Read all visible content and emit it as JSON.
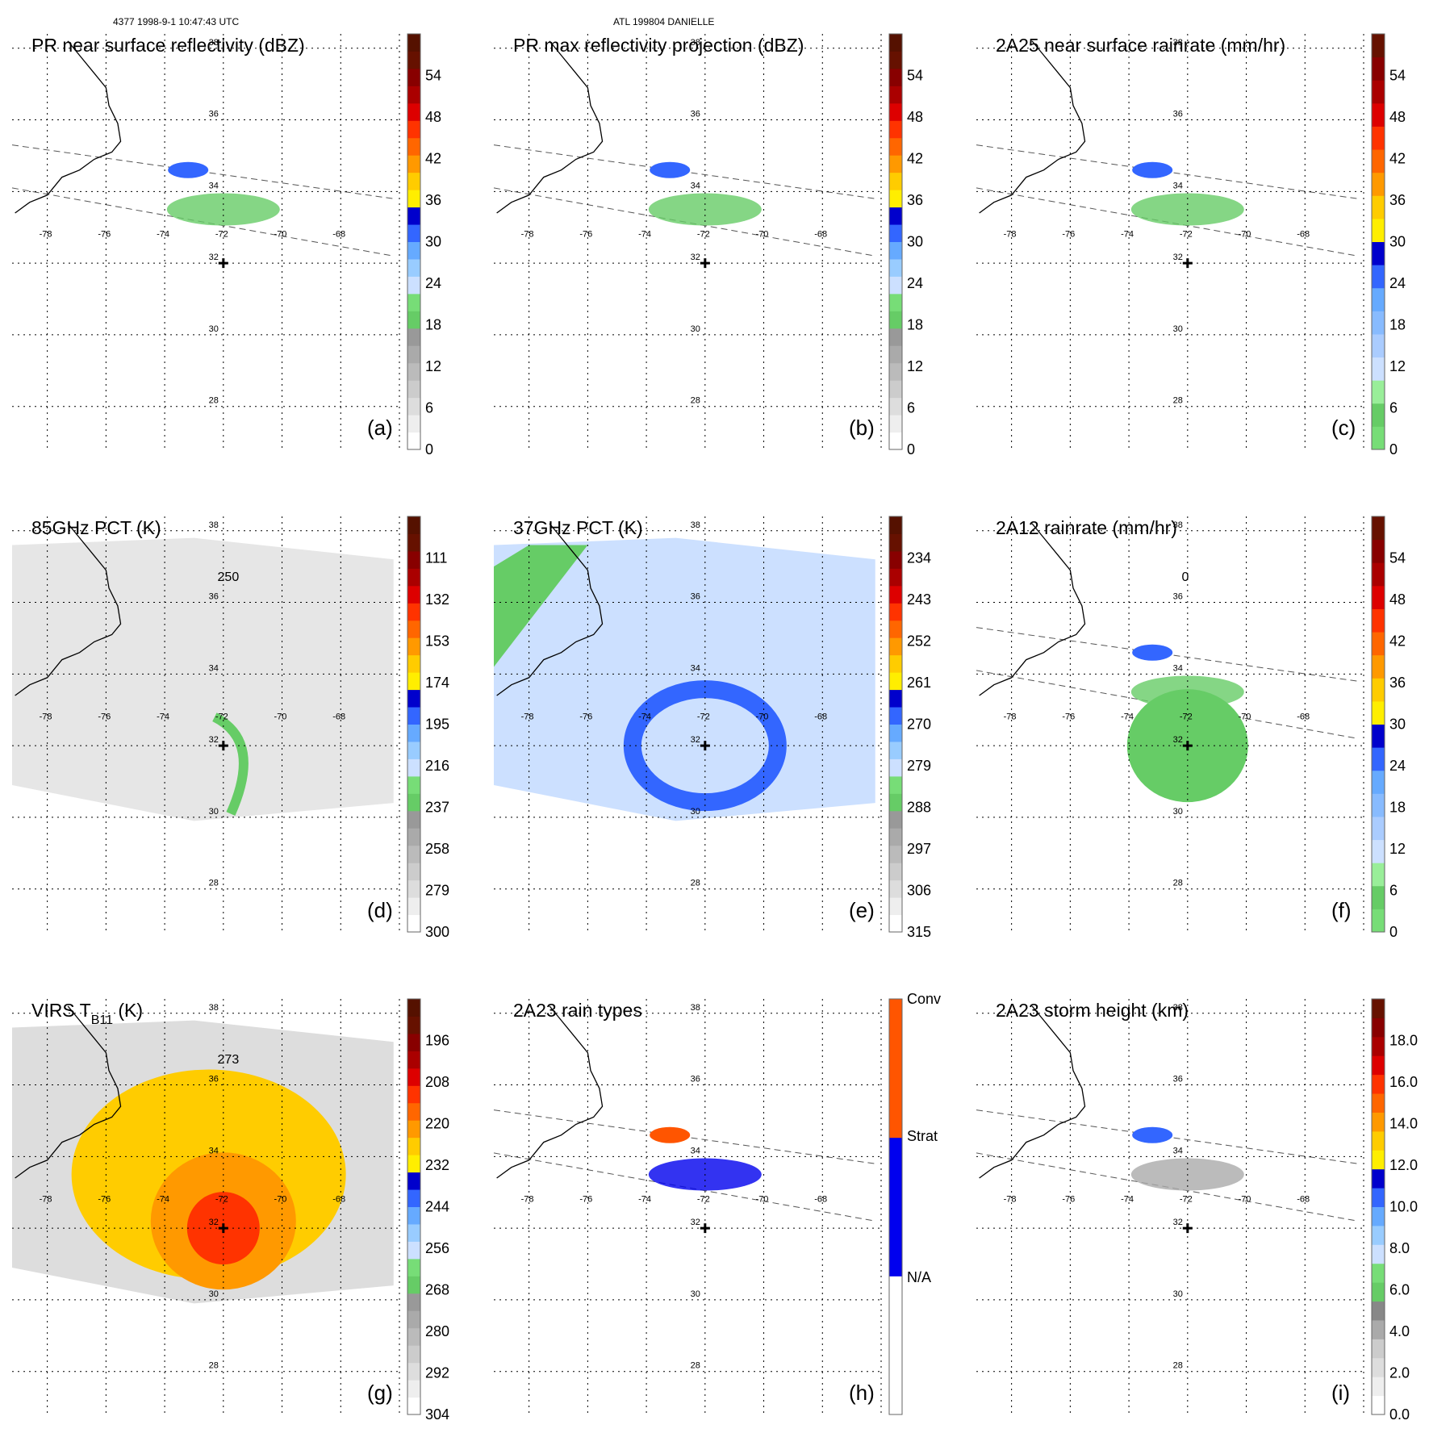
{
  "header": {
    "orbit_info": "4377 1998-9-1 10:47:43 UTC",
    "storm_info": "ATL 199804 DANIELLE"
  },
  "map": {
    "lat_labels": [
      "38",
      "36",
      "34",
      "32",
      "30",
      "28"
    ],
    "lon_labels": [
      "-78",
      "-76",
      "-74",
      "-72",
      "-70",
      "-68"
    ],
    "storm_center": {
      "lon": -72,
      "lat": 32
    }
  },
  "panels": [
    {
      "letter": "(a)",
      "title": "PR near surface reflectivity (dBZ)",
      "colorbar": {
        "labels": [
          "0",
          "6",
          "12",
          "18",
          "24",
          "30",
          "36",
          "42",
          "48",
          "54"
        ],
        "colors": [
          "#ffffff",
          "#eeeeee",
          "#dddddd",
          "#cccccc",
          "#bbbbbb",
          "#aaaaaa",
          "#999999",
          "#66cc66",
          "#77dd77",
          "#cce0ff",
          "#99ccff",
          "#66aaff",
          "#3366ff",
          "#0000cc",
          "#ffee00",
          "#ffcc00",
          "#ff9900",
          "#ff6600",
          "#ff3300",
          "#dd0000",
          "#aa0000",
          "#880000",
          "#661100",
          "#551100"
        ]
      },
      "coverage": "swath"
    },
    {
      "letter": "(b)",
      "title": "PR max reflectivity projection (dBZ)",
      "colorbar": {
        "labels": [
          "0",
          "6",
          "12",
          "18",
          "24",
          "30",
          "36",
          "42",
          "48",
          "54"
        ],
        "colors": [
          "#ffffff",
          "#eeeeee",
          "#dddddd",
          "#cccccc",
          "#bbbbbb",
          "#aaaaaa",
          "#999999",
          "#66cc66",
          "#77dd77",
          "#cce0ff",
          "#99ccff",
          "#66aaff",
          "#3366ff",
          "#0000cc",
          "#ffee00",
          "#ffcc00",
          "#ff9900",
          "#ff6600",
          "#ff3300",
          "#dd0000",
          "#aa0000",
          "#880000",
          "#661100",
          "#551100"
        ]
      },
      "coverage": "swath"
    },
    {
      "letter": "(c)",
      "title": "2A25 near surface rainrate (mm/hr)",
      "colorbar": {
        "labels": [
          "0",
          "6",
          "12",
          "18",
          "24",
          "30",
          "36",
          "42",
          "48",
          "54"
        ],
        "colors": [
          "#77dd77",
          "#66cc66",
          "#99ee99",
          "#cce0ff",
          "#aaccff",
          "#88bbff",
          "#66aaff",
          "#3366ff",
          "#0000cc",
          "#ffee00",
          "#ffcc00",
          "#ff9900",
          "#ff6600",
          "#ff3300",
          "#dd0000",
          "#aa0000",
          "#880000",
          "#661100"
        ]
      },
      "coverage": "swath"
    },
    {
      "letter": "(d)",
      "title": "85GHz PCT (K)",
      "colorbar": {
        "labels": [
          "300",
          "279",
          "258",
          "237",
          "216",
          "195",
          "174",
          "153",
          "132",
          "111"
        ],
        "colors": [
          "#ffffff",
          "#eeeeee",
          "#dddddd",
          "#cccccc",
          "#bbbbbb",
          "#aaaaaa",
          "#999999",
          "#66cc66",
          "#77dd77",
          "#cce0ff",
          "#99ccff",
          "#66aaff",
          "#3366ff",
          "#0000cc",
          "#ffee00",
          "#ffcc00",
          "#ff9900",
          "#ff6600",
          "#ff3300",
          "#dd0000",
          "#aa0000",
          "#880000",
          "#661100",
          "#551100"
        ]
      },
      "contour_label": "250",
      "coverage": "wide"
    },
    {
      "letter": "(e)",
      "title": "37GHz PCT (K)",
      "colorbar": {
        "labels": [
          "315",
          "306",
          "297",
          "288",
          "279",
          "270",
          "261",
          "252",
          "243",
          "234"
        ],
        "colors": [
          "#ffffff",
          "#eeeeee",
          "#dddddd",
          "#cccccc",
          "#bbbbbb",
          "#aaaaaa",
          "#999999",
          "#66cc66",
          "#77dd77",
          "#cce0ff",
          "#99ccff",
          "#66aaff",
          "#3366ff",
          "#0000cc",
          "#ffee00",
          "#ffcc00",
          "#ff9900",
          "#ff6600",
          "#ff3300",
          "#dd0000",
          "#aa0000",
          "#880000",
          "#661100",
          "#551100"
        ]
      },
      "coverage": "wide"
    },
    {
      "letter": "(f)",
      "title": "2A12 rainrate (mm/hr)",
      "colorbar": {
        "labels": [
          "0",
          "6",
          "12",
          "18",
          "24",
          "30",
          "36",
          "42",
          "48",
          "54"
        ],
        "colors": [
          "#77dd77",
          "#66cc66",
          "#99ee99",
          "#cce0ff",
          "#aaccff",
          "#88bbff",
          "#66aaff",
          "#3366ff",
          "#0000cc",
          "#ffee00",
          "#ffcc00",
          "#ff9900",
          "#ff6600",
          "#ff3300",
          "#dd0000",
          "#aa0000",
          "#880000",
          "#661100"
        ]
      },
      "contour_label": "0",
      "coverage": "swath"
    },
    {
      "letter": "(g)",
      "title": "VIRS T",
      "title_sub": "B11",
      "title_suffix": " (K)",
      "colorbar": {
        "labels": [
          "304",
          "292",
          "280",
          "268",
          "256",
          "244",
          "232",
          "220",
          "208",
          "196"
        ],
        "colors": [
          "#ffffff",
          "#eeeeee",
          "#dddddd",
          "#cccccc",
          "#bbbbbb",
          "#aaaaaa",
          "#999999",
          "#66cc66",
          "#77dd77",
          "#cce0ff",
          "#99ccff",
          "#66aaff",
          "#3366ff",
          "#0000cc",
          "#ffee00",
          "#ffcc00",
          "#ff9900",
          "#ff6600",
          "#ff3300",
          "#dd0000",
          "#aa0000",
          "#880000",
          "#661100",
          "#551100"
        ]
      },
      "contour_label": "273",
      "coverage": "wide"
    },
    {
      "letter": "(h)",
      "title": "2A23 rain types",
      "colorbar": {
        "labels": [
          "N/A",
          "Strat",
          "Conv"
        ],
        "colors": [
          "#ffffff",
          "#0000ee",
          "#ff5500"
        ]
      },
      "coverage": "swath"
    },
    {
      "letter": "(i)",
      "title": "2A23 storm height (km)",
      "colorbar": {
        "labels": [
          "0.0",
          "2.0",
          "4.0",
          "6.0",
          "8.0",
          "10.0",
          "12.0",
          "14.0",
          "16.0",
          "18.0"
        ],
        "colors": [
          "#ffffff",
          "#eeeeee",
          "#dddddd",
          "#cccccc",
          "#aaaaaa",
          "#888888",
          "#66cc66",
          "#77dd77",
          "#cce0ff",
          "#99ccff",
          "#66aaff",
          "#3366ff",
          "#0000cc",
          "#ffee00",
          "#ffcc00",
          "#ff9900",
          "#ff6600",
          "#ff3300",
          "#dd0000",
          "#aa0000",
          "#880000",
          "#661100"
        ]
      },
      "coverage": "swath"
    }
  ]
}
